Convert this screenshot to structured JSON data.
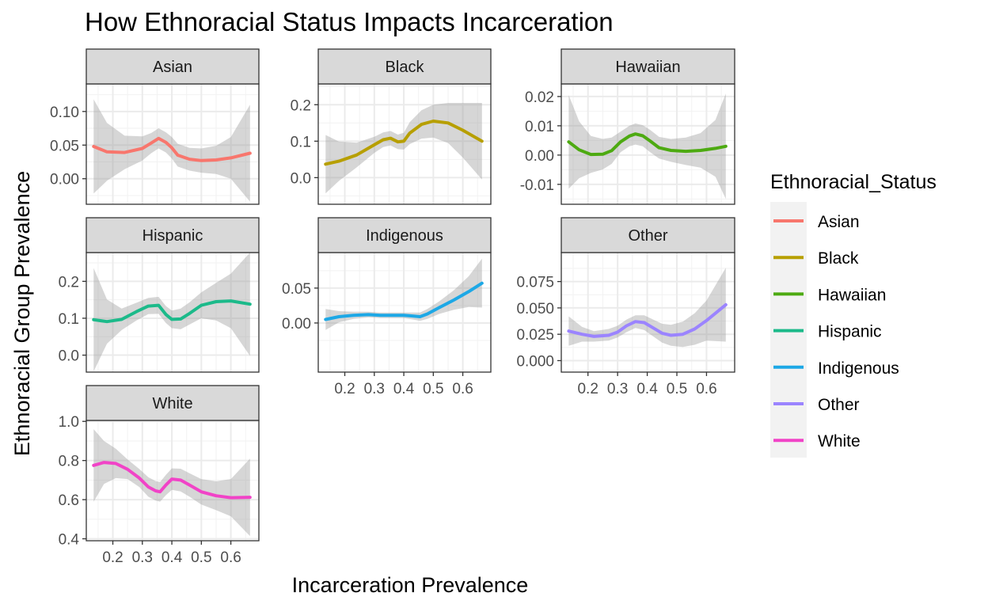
{
  "chart_data": {
    "type": "line",
    "title": "How Ethnoracial Status Impacts Incarceration",
    "xlabel": "Incarceration Prevalence",
    "ylabel": "Ethnoracial Group Prevalence",
    "x_ticks": [
      0.2,
      0.3,
      0.4,
      0.5,
      0.6
    ],
    "x_tick_labels": [
      "0.2",
      "0.3",
      "0.4",
      "0.5",
      "0.6"
    ],
    "xlim": [
      0.11,
      0.695
    ],
    "grid": true,
    "smoothing_band": "confidence interval (grey)",
    "legend": {
      "title": "Ethnoracial_Status",
      "position": "right",
      "entries": [
        "Asian",
        "Black",
        "Hawaiian",
        "Hispanic",
        "Indigenous",
        "Other",
        "White"
      ]
    },
    "panels": [
      {
        "name": "Asian",
        "color": "#F8766D",
        "ylim": [
          -0.038,
          0.141
        ],
        "y_ticks": [
          0.0,
          0.05,
          0.1
        ],
        "y_tick_labels": [
          "0.00",
          "0.05",
          "0.10"
        ],
        "x": [
          0.135,
          0.18,
          0.24,
          0.3,
          0.33,
          0.355,
          0.38,
          0.4,
          0.42,
          0.46,
          0.5,
          0.55,
          0.6,
          0.665
        ],
        "y": [
          0.048,
          0.04,
          0.039,
          0.045,
          0.053,
          0.06,
          0.054,
          0.046,
          0.035,
          0.029,
          0.027,
          0.028,
          0.031,
          0.038
        ],
        "upper": [
          0.118,
          0.083,
          0.064,
          0.063,
          0.068,
          0.075,
          0.069,
          0.062,
          0.052,
          0.046,
          0.045,
          0.049,
          0.062,
          0.11
        ],
        "lower": [
          -0.022,
          -0.003,
          0.014,
          0.027,
          0.038,
          0.045,
          0.039,
          0.03,
          0.018,
          0.012,
          0.009,
          0.007,
          0.0,
          -0.034
        ]
      },
      {
        "name": "Black",
        "color": "#B79F00",
        "ylim": [
          -0.073,
          0.257
        ],
        "y_ticks": [
          0.0,
          0.1,
          0.2
        ],
        "y_tick_labels": [
          "0.0",
          "0.1",
          "0.2"
        ],
        "x": [
          0.135,
          0.18,
          0.24,
          0.3,
          0.33,
          0.355,
          0.38,
          0.4,
          0.42,
          0.46,
          0.5,
          0.55,
          0.6,
          0.665
        ],
        "y": [
          0.037,
          0.045,
          0.062,
          0.09,
          0.104,
          0.108,
          0.098,
          0.1,
          0.122,
          0.146,
          0.155,
          0.15,
          0.13,
          0.1
        ],
        "upper": [
          0.117,
          0.099,
          0.096,
          0.112,
          0.124,
          0.128,
          0.118,
          0.123,
          0.152,
          0.185,
          0.2,
          0.205,
          0.205,
          0.205
        ],
        "lower": [
          -0.043,
          -0.009,
          0.028,
          0.068,
          0.084,
          0.088,
          0.078,
          0.077,
          0.092,
          0.107,
          0.11,
          0.095,
          0.055,
          -0.005
        ]
      },
      {
        "name": "Hawaiian",
        "color": "#4DAA11",
        "ylim": [
          -0.0168,
          0.0243
        ],
        "y_ticks": [
          -0.01,
          0.0,
          0.01,
          0.02
        ],
        "y_tick_labels": [
          "-0.01",
          "0.00",
          "0.01",
          "0.02"
        ],
        "x": [
          0.135,
          0.17,
          0.21,
          0.25,
          0.28,
          0.31,
          0.34,
          0.36,
          0.385,
          0.41,
          0.44,
          0.48,
          0.53,
          0.58,
          0.63,
          0.665
        ],
        "y": [
          0.0045,
          0.0018,
          0.0002,
          0.0003,
          0.0015,
          0.0045,
          0.0065,
          0.0072,
          0.0066,
          0.0048,
          0.0025,
          0.0016,
          0.0013,
          0.0016,
          0.0023,
          0.003
        ],
        "upper": [
          0.0205,
          0.0115,
          0.0065,
          0.0055,
          0.006,
          0.008,
          0.01,
          0.0108,
          0.0102,
          0.0086,
          0.0062,
          0.0055,
          0.006,
          0.0075,
          0.012,
          0.021
        ],
        "lower": [
          -0.0115,
          -0.0079,
          -0.0061,
          -0.0049,
          -0.003,
          0.001,
          0.003,
          0.0036,
          0.003,
          0.001,
          -0.0012,
          -0.0023,
          -0.0034,
          -0.0043,
          -0.0074,
          -0.015
        ]
      },
      {
        "name": "Hispanic",
        "color": "#1CBA8A",
        "ylim": [
          -0.046,
          0.278
        ],
        "y_ticks": [
          0.0,
          0.1,
          0.2
        ],
        "y_tick_labels": [
          "0.0",
          "0.1",
          "0.2"
        ],
        "x": [
          0.135,
          0.18,
          0.23,
          0.28,
          0.32,
          0.355,
          0.38,
          0.4,
          0.43,
          0.46,
          0.5,
          0.55,
          0.6,
          0.665
        ],
        "y": [
          0.096,
          0.091,
          0.097,
          0.118,
          0.133,
          0.135,
          0.11,
          0.097,
          0.098,
          0.113,
          0.135,
          0.145,
          0.147,
          0.138
        ],
        "upper": [
          0.236,
          0.151,
          0.126,
          0.142,
          0.155,
          0.158,
          0.133,
          0.121,
          0.126,
          0.143,
          0.17,
          0.196,
          0.221,
          0.278
        ],
        "lower": [
          -0.044,
          0.031,
          0.068,
          0.094,
          0.111,
          0.112,
          0.087,
          0.073,
          0.07,
          0.083,
          0.1,
          0.094,
          0.073,
          -0.002
        ]
      },
      {
        "name": "Indigenous",
        "color": "#1DA8E6",
        "ylim": [
          -0.0704,
          0.1009
        ],
        "y_ticks": [
          0.0,
          0.05
        ],
        "y_tick_labels": [
          "0.00",
          "0.05"
        ],
        "x": [
          0.135,
          0.18,
          0.23,
          0.28,
          0.32,
          0.36,
          0.4,
          0.43,
          0.455,
          0.48,
          0.52,
          0.57,
          0.62,
          0.665
        ],
        "y": [
          0.005,
          0.009,
          0.011,
          0.012,
          0.011,
          0.011,
          0.011,
          0.01,
          0.009,
          0.013,
          0.022,
          0.033,
          0.045,
          0.057
        ],
        "upper": [
          0.02,
          0.017,
          0.016,
          0.016,
          0.015,
          0.015,
          0.015,
          0.015,
          0.015,
          0.02,
          0.031,
          0.047,
          0.067,
          0.092
        ],
        "lower": [
          -0.01,
          0.001,
          0.006,
          0.008,
          0.007,
          0.007,
          0.007,
          0.005,
          0.003,
          0.006,
          0.013,
          0.019,
          0.023,
          0.022
        ]
      },
      {
        "name": "Other",
        "color": "#9B84FF",
        "ylim": [
          -0.0109,
          0.1025
        ],
        "y_ticks": [
          0.0,
          0.025,
          0.05,
          0.075
        ],
        "y_tick_labels": [
          "0.000",
          "0.025",
          "0.050",
          "0.075"
        ],
        "x": [
          0.135,
          0.18,
          0.22,
          0.27,
          0.3,
          0.33,
          0.36,
          0.39,
          0.42,
          0.45,
          0.48,
          0.52,
          0.56,
          0.6,
          0.665
        ],
        "y": [
          0.028,
          0.025,
          0.023,
          0.024,
          0.027,
          0.033,
          0.037,
          0.036,
          0.031,
          0.026,
          0.024,
          0.025,
          0.03,
          0.038,
          0.053
        ],
        "upper": [
          0.042,
          0.032,
          0.028,
          0.03,
          0.033,
          0.039,
          0.043,
          0.043,
          0.039,
          0.035,
          0.034,
          0.037,
          0.045,
          0.057,
          0.088
        ],
        "lower": [
          0.014,
          0.018,
          0.018,
          0.019,
          0.022,
          0.027,
          0.031,
          0.029,
          0.023,
          0.017,
          0.014,
          0.013,
          0.015,
          0.019,
          0.018
        ]
      },
      {
        "name": "White",
        "color": "#F143C7",
        "ylim": [
          0.39,
          1.005
        ],
        "y_ticks": [
          0.4,
          0.6,
          0.8,
          1.0
        ],
        "y_tick_labels": [
          "0.4",
          "0.6",
          "0.8",
          "1.0"
        ],
        "x": [
          0.135,
          0.17,
          0.21,
          0.25,
          0.29,
          0.32,
          0.345,
          0.36,
          0.38,
          0.4,
          0.43,
          0.46,
          0.5,
          0.55,
          0.6,
          0.665
        ],
        "y": [
          0.775,
          0.79,
          0.785,
          0.755,
          0.71,
          0.665,
          0.645,
          0.64,
          0.675,
          0.705,
          0.7,
          0.675,
          0.64,
          0.62,
          0.61,
          0.612
        ],
        "upper": [
          0.96,
          0.9,
          0.86,
          0.805,
          0.756,
          0.715,
          0.695,
          0.69,
          0.727,
          0.76,
          0.758,
          0.735,
          0.705,
          0.694,
          0.705,
          0.81
        ],
        "lower": [
          0.59,
          0.68,
          0.71,
          0.705,
          0.664,
          0.615,
          0.595,
          0.59,
          0.623,
          0.65,
          0.642,
          0.615,
          0.575,
          0.546,
          0.515,
          0.414
        ]
      }
    ]
  }
}
